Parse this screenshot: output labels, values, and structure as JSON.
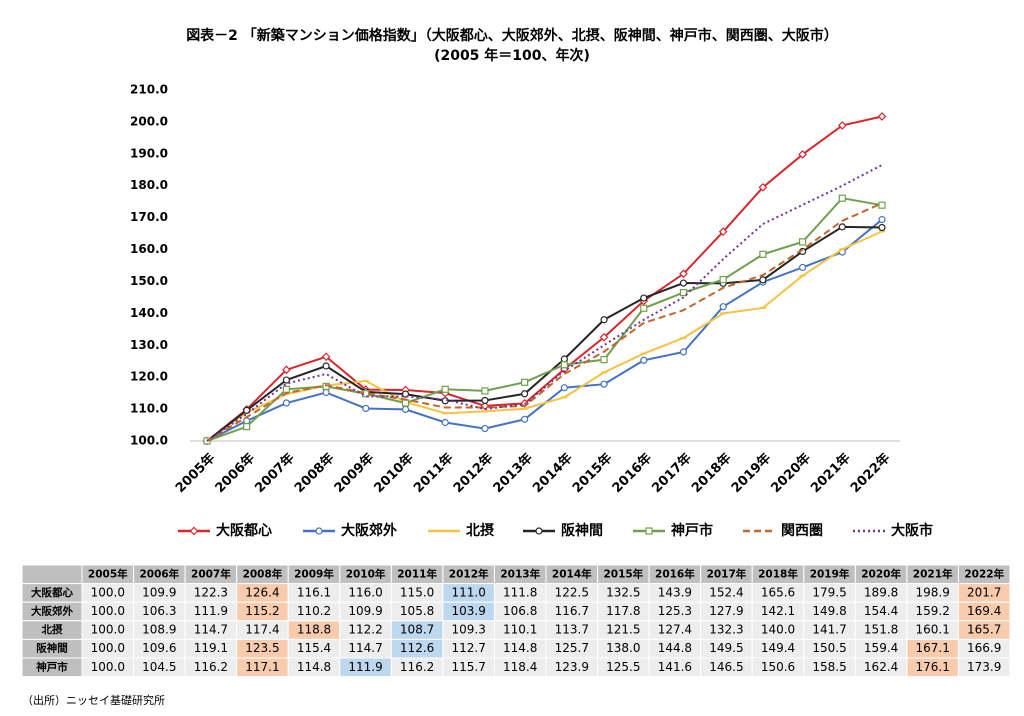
{
  "chart_data": {
    "type": "line",
    "title": "図表－2 「新築マンション価格指数」（大阪都心、大阪郊外、北摂、阪神間、神戸市、関西圏、大阪市）",
    "subtitle": "(2005 年＝100、年次)",
    "categories": [
      "2005年",
      "2006年",
      "2007年",
      "2008年",
      "2009年",
      "2010年",
      "2011年",
      "2012年",
      "2013年",
      "2014年",
      "2015年",
      "2016年",
      "2017年",
      "2018年",
      "2019年",
      "2020年",
      "2021年",
      "2022年"
    ],
    "ylim": [
      100,
      210
    ],
    "yticks": [
      {
        "value": 100,
        "label": "100.0"
      },
      {
        "value": 110,
        "label": "110.0"
      },
      {
        "value": 120,
        "label": "120.0"
      },
      {
        "value": 130,
        "label": "130.0"
      },
      {
        "value": 140,
        "label": "140.0"
      },
      {
        "value": 150,
        "label": "150.0"
      },
      {
        "value": 160,
        "label": "160.0"
      },
      {
        "value": 170,
        "label": "170.0"
      },
      {
        "value": 180,
        "label": "180.0"
      },
      {
        "value": 190,
        "label": "190.0"
      },
      {
        "value": 200,
        "label": "200.0"
      },
      {
        "value": 210,
        "label": "210.0"
      }
    ],
    "grid": false,
    "legend": "bottom",
    "series": [
      {
        "name": "大阪都心",
        "color": "#d9262b",
        "marker": "diamond",
        "dash": "solid",
        "values": [
          100.0,
          109.9,
          122.3,
          126.4,
          116.1,
          116.0,
          115.0,
          111.0,
          111.8,
          122.5,
          132.5,
          143.9,
          152.4,
          165.6,
          179.5,
          189.8,
          198.9,
          201.7
        ]
      },
      {
        "name": "大阪郊外",
        "color": "#4472c4",
        "marker": "circle",
        "dash": "solid",
        "values": [
          100.0,
          106.3,
          111.9,
          115.2,
          110.2,
          109.9,
          105.8,
          103.9,
          106.8,
          116.7,
          117.8,
          125.3,
          127.9,
          142.1,
          149.8,
          154.4,
          159.2,
          169.4
        ]
      },
      {
        "name": "北摂",
        "color": "#f5c242",
        "marker": "dash",
        "dash": "solid",
        "values": [
          100.0,
          108.9,
          114.7,
          117.4,
          118.8,
          112.2,
          108.7,
          109.3,
          110.1,
          113.7,
          121.5,
          127.4,
          132.3,
          140.0,
          141.7,
          151.8,
          160.1,
          165.7
        ]
      },
      {
        "name": "阪神間",
        "color": "#262626",
        "marker": "circle",
        "dash": "solid",
        "values": [
          100.0,
          109.6,
          119.1,
          123.5,
          115.4,
          114.7,
          112.6,
          112.7,
          114.8,
          125.7,
          138.0,
          144.8,
          149.5,
          149.4,
          150.5,
          159.4,
          167.1,
          166.9
        ]
      },
      {
        "name": "神戸市",
        "color": "#70a04b",
        "marker": "square",
        "dash": "solid",
        "values": [
          100.0,
          104.5,
          116.2,
          117.1,
          114.8,
          111.9,
          116.2,
          115.7,
          118.4,
          123.9,
          125.5,
          141.6,
          146.5,
          150.6,
          158.5,
          162.4,
          176.1,
          173.9
        ]
      },
      {
        "name": "関西圏",
        "color": "#c0672c",
        "marker": "none",
        "dash": "dashed",
        "values": [
          100.0,
          107.5,
          115.0,
          117.5,
          115.0,
          113.0,
          110.5,
          110.5,
          111.0,
          121.0,
          128.0,
          137.0,
          141.0,
          148.0,
          152.0,
          160.0,
          169.0,
          174.5
        ]
      },
      {
        "name": "大阪市",
        "color": "#7030a0",
        "marker": "none",
        "dash": "dotted",
        "values": [
          100.0,
          108.5,
          118.0,
          121.0,
          114.0,
          114.0,
          113.0,
          110.0,
          111.5,
          122.0,
          130.0,
          138.0,
          145.0,
          157.0,
          168.0,
          174.0,
          180.0,
          186.5
        ]
      }
    ]
  },
  "table": {
    "columns": [
      "2005年",
      "2006年",
      "2007年",
      "2008年",
      "2009年",
      "2010年",
      "2011年",
      "2012年",
      "2013年",
      "2014年",
      "2015年",
      "2016年",
      "2017年",
      "2018年",
      "2019年",
      "2020年",
      "2021年",
      "2022年"
    ],
    "highlight_colors": {
      "orange": "#f8cbad",
      "blue": "#bdd7ee"
    },
    "rows": [
      {
        "label": "大阪都心",
        "cells": [
          "100.0",
          "109.9",
          "122.3",
          "126.4",
          "116.1",
          "116.0",
          "115.0",
          "111.0",
          "111.8",
          "122.5",
          "132.5",
          "143.9",
          "152.4",
          "165.6",
          "179.5",
          "189.8",
          "198.9",
          "201.7"
        ],
        "orange": [
          3,
          17
        ],
        "blue": [
          7
        ]
      },
      {
        "label": "大阪郊外",
        "cells": [
          "100.0",
          "106.3",
          "111.9",
          "115.2",
          "110.2",
          "109.9",
          "105.8",
          "103.9",
          "106.8",
          "116.7",
          "117.8",
          "125.3",
          "127.9",
          "142.1",
          "149.8",
          "154.4",
          "159.2",
          "169.4"
        ],
        "orange": [
          3,
          17
        ],
        "blue": [
          7
        ]
      },
      {
        "label": "北摂",
        "cells": [
          "100.0",
          "108.9",
          "114.7",
          "117.4",
          "118.8",
          "112.2",
          "108.7",
          "109.3",
          "110.1",
          "113.7",
          "121.5",
          "127.4",
          "132.3",
          "140.0",
          "141.7",
          "151.8",
          "160.1",
          "165.7"
        ],
        "orange": [
          4,
          17
        ],
        "blue": [
          6
        ]
      },
      {
        "label": "阪神間",
        "cells": [
          "100.0",
          "109.6",
          "119.1",
          "123.5",
          "115.4",
          "114.7",
          "112.6",
          "112.7",
          "114.8",
          "125.7",
          "138.0",
          "144.8",
          "149.5",
          "149.4",
          "150.5",
          "159.4",
          "167.1",
          "166.9"
        ],
        "orange": [
          3,
          16
        ],
        "blue": [
          6
        ]
      },
      {
        "label": "神戸市",
        "cells": [
          "100.0",
          "104.5",
          "116.2",
          "117.1",
          "114.8",
          "111.9",
          "116.2",
          "115.7",
          "118.4",
          "123.9",
          "125.5",
          "141.6",
          "146.5",
          "150.6",
          "158.5",
          "162.4",
          "176.1",
          "173.9"
        ],
        "orange": [
          3,
          16
        ],
        "blue": [
          5
        ]
      }
    ]
  },
  "source": "（出所）ニッセイ基礎研究所"
}
